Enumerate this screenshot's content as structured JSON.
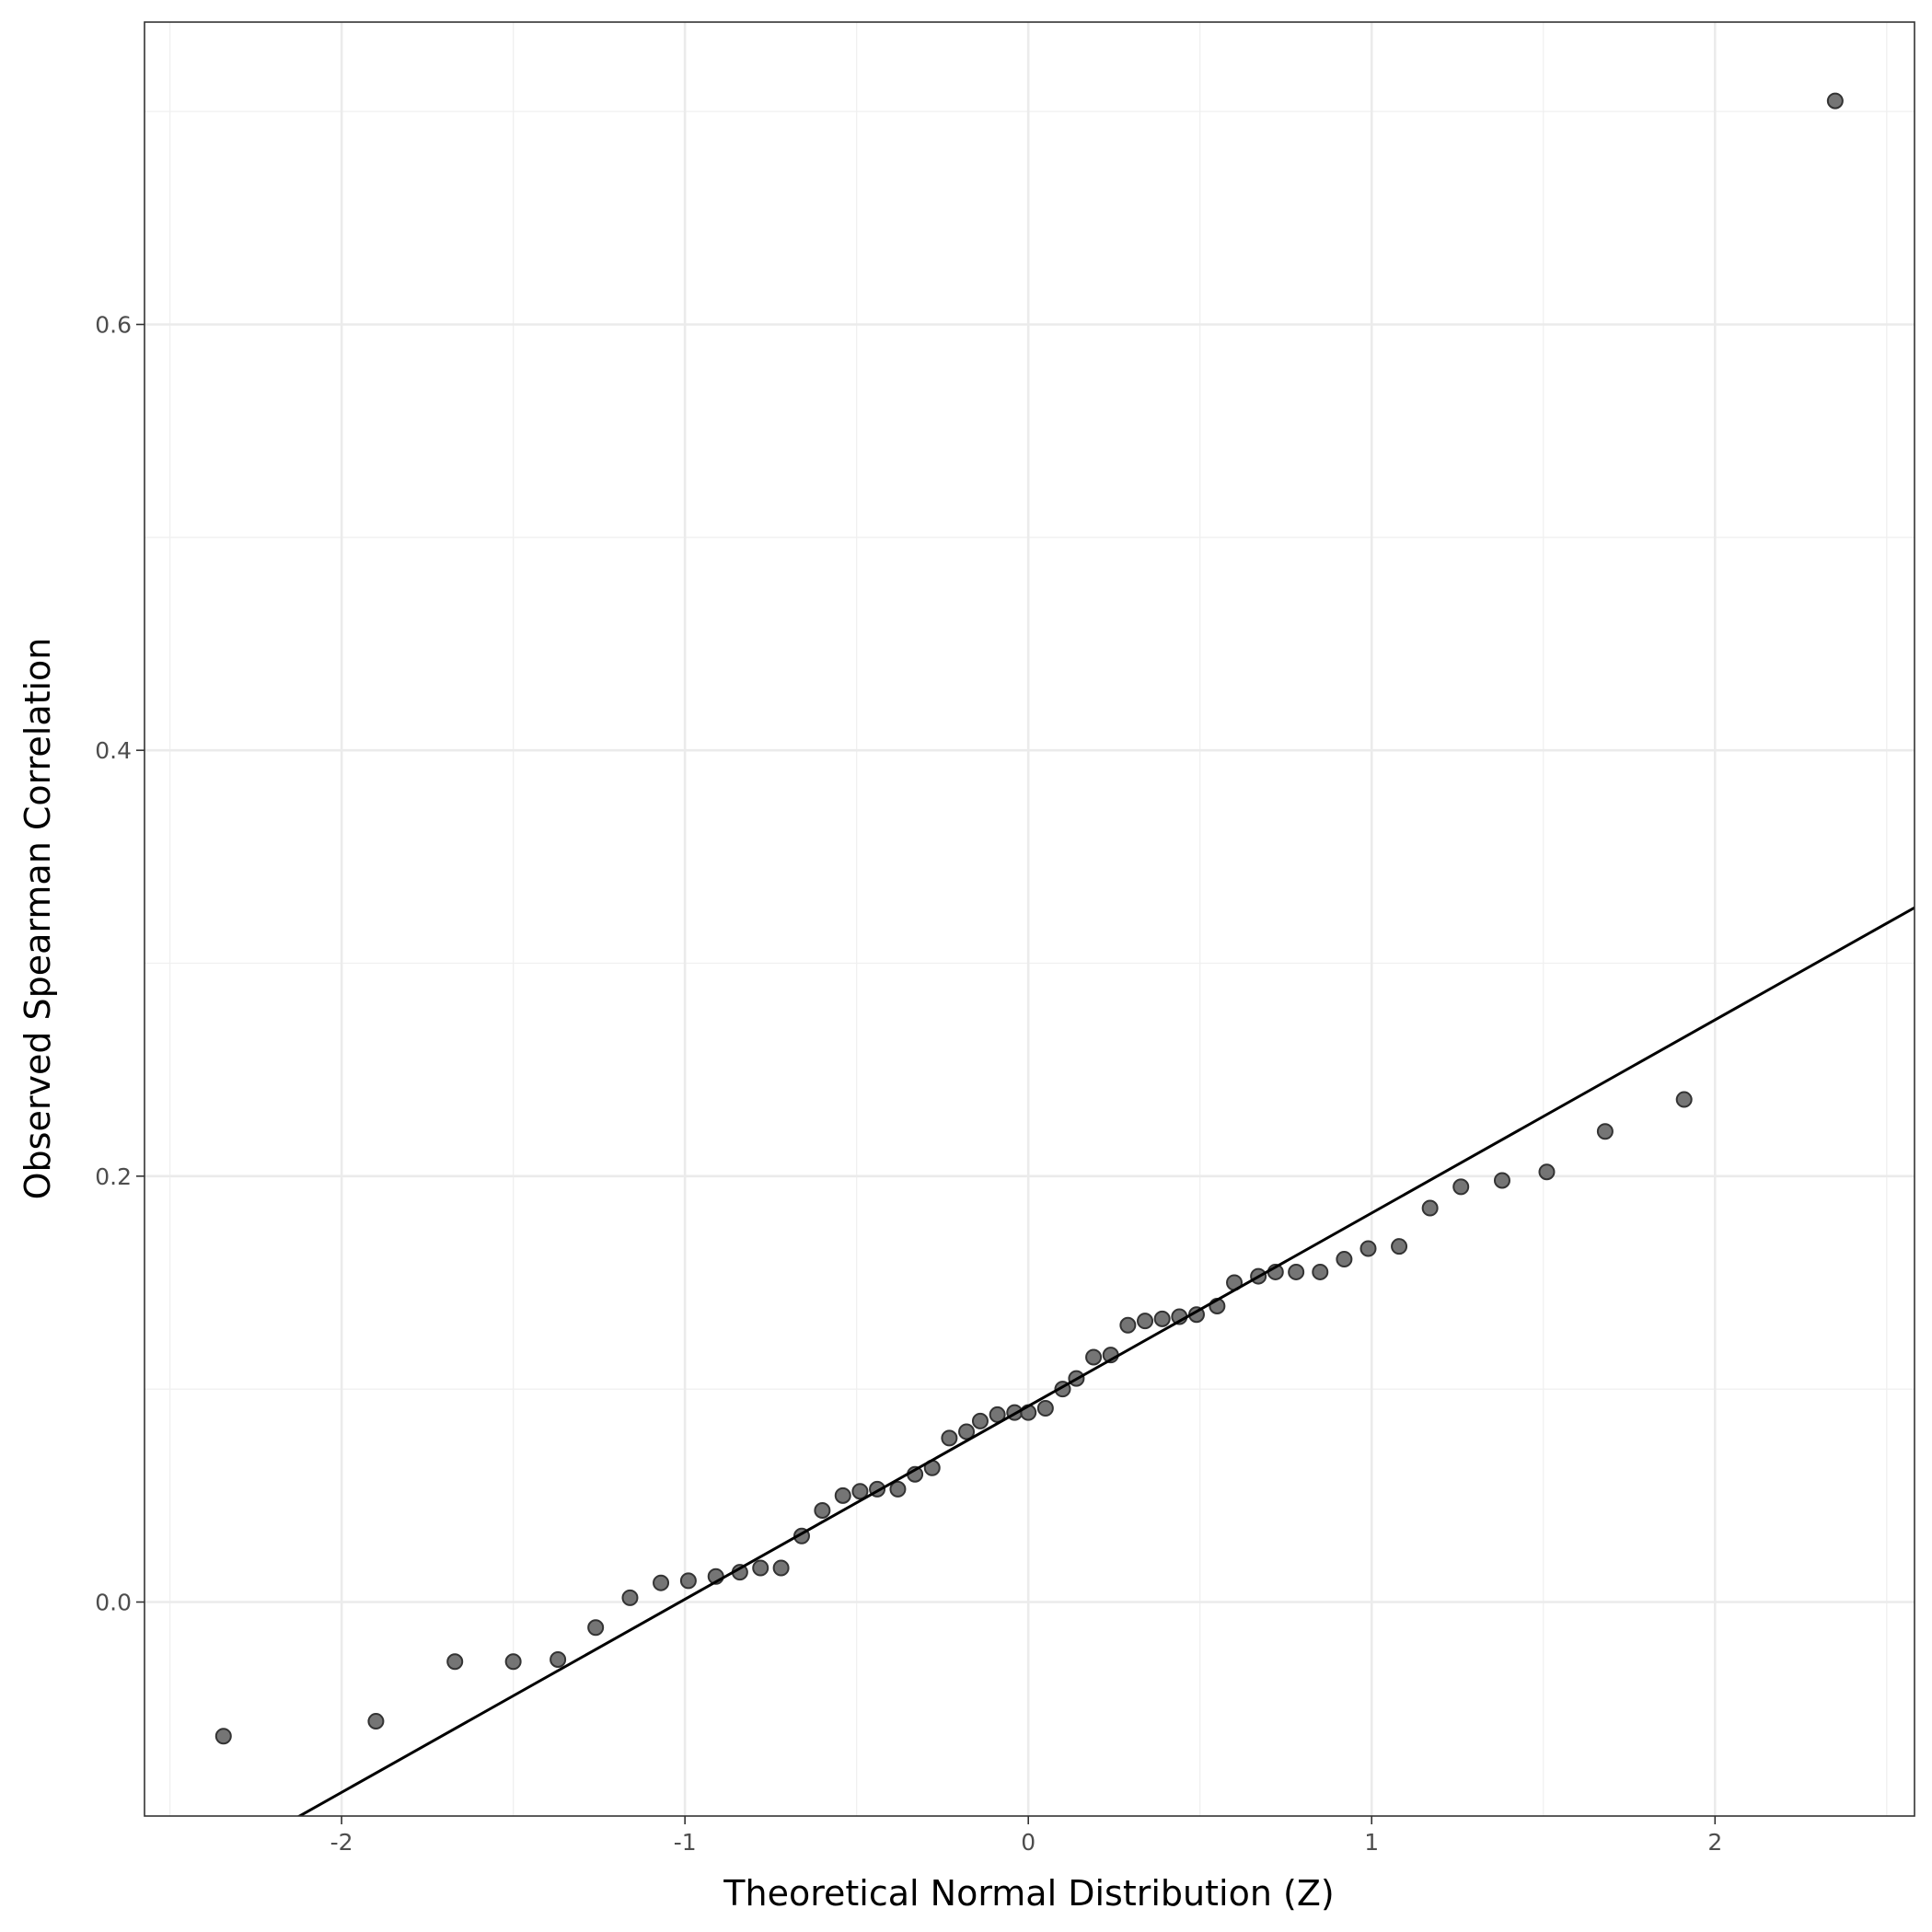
{
  "chart_data": {
    "type": "scatter",
    "x_label": "Theoretical Normal Distribution (Z)",
    "y_label": "Observed Spearman Correlation",
    "x": [
      -2.344,
      -1.9,
      -1.67,
      -1.5,
      -1.37,
      -1.26,
      -1.16,
      -1.07,
      -0.99,
      -0.91,
      -0.84,
      -0.78,
      -0.72,
      -0.66,
      -0.6,
      -0.54,
      -0.49,
      -0.44,
      -0.38,
      -0.33,
      -0.28,
      -0.23,
      -0.18,
      -0.14,
      -0.09,
      -0.04,
      0.0,
      0.05,
      0.1,
      0.14,
      0.19,
      0.24,
      0.29,
      0.34,
      0.39,
      0.44,
      0.49,
      0.55,
      0.6,
      0.67,
      0.72,
      0.78,
      0.85,
      0.92,
      0.99,
      1.08,
      1.17,
      1.26,
      1.38,
      1.51,
      1.68,
      1.91,
      2.35
    ],
    "values": [
      -0.063,
      -0.056,
      -0.028,
      -0.028,
      -0.027,
      -0.012,
      0.002,
      0.009,
      0.01,
      0.012,
      0.014,
      0.016,
      0.016,
      0.031,
      0.043,
      0.05,
      0.052,
      0.053,
      0.053,
      0.06,
      0.063,
      0.077,
      0.08,
      0.085,
      0.088,
      0.089,
      0.089,
      0.091,
      0.1,
      0.105,
      0.115,
      0.116,
      0.13,
      0.132,
      0.133,
      0.134,
      0.135,
      0.139,
      0.15,
      0.153,
      0.155,
      0.155,
      0.155,
      0.161,
      0.166,
      0.167,
      0.185,
      0.195,
      0.198,
      0.202,
      0.221,
      0.236,
      0.705
    ],
    "color": "#666666",
    "reference_line": {
      "intercept": 0.092,
      "slope": 0.0907,
      "color": "#000000"
    },
    "xlim": [
      -2.574,
      2.581
    ],
    "ylim": [
      -0.1005,
      0.742
    ],
    "xticks": [
      -2,
      -1,
      0,
      1,
      2
    ],
    "yticks": [
      {
        "value": 0,
        "label": "0.0"
      },
      0.2,
      0.4,
      0.6
    ],
    "xminor": [
      -2.5,
      -1.5,
      -0.5,
      0.5,
      1.5,
      2.5
    ],
    "yminor": [
      0.1,
      0.3,
      0.5,
      0.7
    ],
    "grid": true
  }
}
